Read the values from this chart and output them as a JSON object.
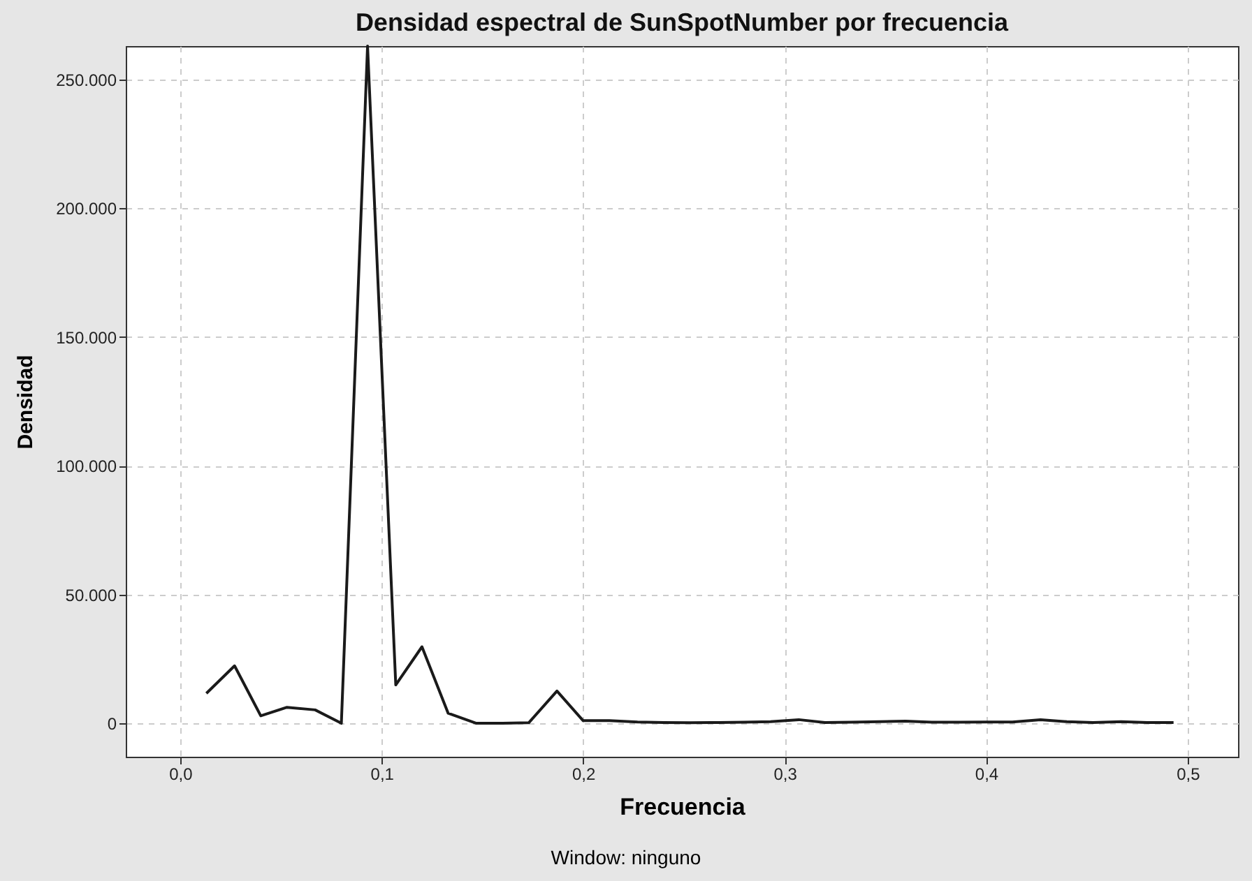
{
  "chart_data": {
    "type": "line",
    "title": "Densidad espectral de SunSpotNumber por frecuencia",
    "xlabel": "Frecuencia",
    "ylabel": "Densidad",
    "x": [
      0.013,
      0.027,
      0.04,
      0.053,
      0.067,
      0.08,
      0.093,
      0.107,
      0.12,
      0.133,
      0.147,
      0.16,
      0.173,
      0.187,
      0.2,
      0.213,
      0.227,
      0.24,
      0.253,
      0.267,
      0.28,
      0.293,
      0.307,
      0.32,
      0.333,
      0.347,
      0.36,
      0.373,
      0.387,
      0.4,
      0.413,
      0.427,
      0.44,
      0.453,
      0.467,
      0.48,
      0.493
    ],
    "series": [
      {
        "color": "#1a1a1a",
        "values": [
          11600,
          22300,
          2900,
          6200,
          5200,
          0,
          263000,
          14900,
          29700,
          3900,
          0,
          0,
          200,
          12500,
          1000,
          1000,
          500,
          300,
          200,
          300,
          400,
          600,
          1400,
          300,
          400,
          600,
          800,
          400,
          400,
          500,
          500,
          1400,
          600,
          300,
          600,
          300,
          300
        ]
      }
    ],
    "xlim": [
      -0.027,
      0.525
    ],
    "ylim": [
      -13000,
      263000
    ],
    "xticks": [
      {
        "value": 0,
        "label": "0,0"
      },
      {
        "value": 0.1,
        "label": "0,1"
      },
      {
        "value": 0.2,
        "label": "0,2"
      },
      {
        "value": 0.3,
        "label": "0,3"
      },
      {
        "value": 0.4,
        "label": "0,4"
      },
      {
        "value": 0.5,
        "label": "0,5"
      }
    ],
    "yticks": [
      {
        "value": 0,
        "label": "0"
      },
      {
        "value": 50000,
        "label": "50.000"
      },
      {
        "value": 100000,
        "label": "100.000"
      },
      {
        "value": 150000,
        "label": "150.000"
      },
      {
        "value": 200000,
        "label": "200.000"
      },
      {
        "value": 250000,
        "label": "250.000"
      }
    ],
    "grid": true,
    "line_style": "solid",
    "marker": "none",
    "annotations": [
      "Window: ninguno"
    ]
  }
}
